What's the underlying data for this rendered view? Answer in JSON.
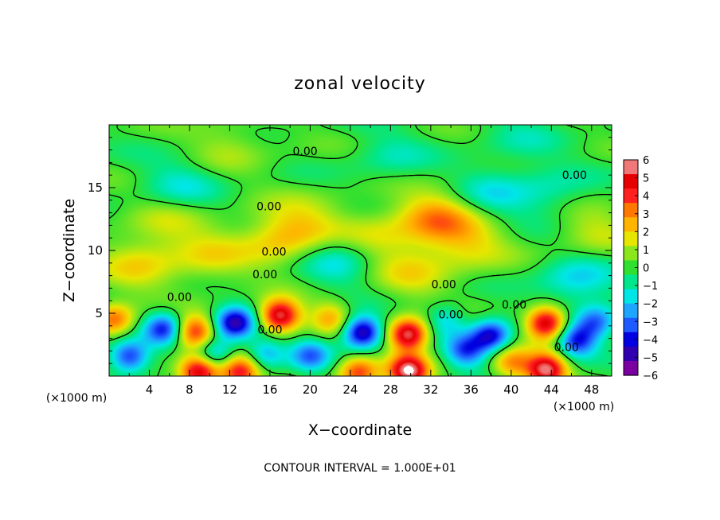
{
  "chart_data": {
    "type": "heatmap",
    "title": "zonal velocity",
    "xlabel": "X−coordinate",
    "ylabel": "Z−coordinate",
    "x_units": "(×1000 m)",
    "y_units": "(×1000 m)",
    "xlim": [
      0,
      50
    ],
    "ylim": [
      0,
      20
    ],
    "x_ticks": [
      4,
      8,
      12,
      16,
      20,
      24,
      28,
      32,
      36,
      40,
      44,
      48
    ],
    "y_ticks": [
      5,
      10,
      15
    ],
    "x_tick_labels": [
      "4",
      "8",
      "12",
      "16",
      "20",
      "24",
      "28",
      "32",
      "36",
      "40",
      "44",
      "48"
    ],
    "y_tick_labels": [
      "5",
      "10",
      "15"
    ],
    "footer": "CONTOUR INTERVAL = 1.000E+01",
    "colorbar": {
      "range": [
        -6,
        6
      ],
      "ticks": [
        6,
        5,
        4,
        3,
        2,
        1,
        0,
        -1,
        -2,
        -3,
        -4,
        -5,
        -6
      ],
      "tick_labels": [
        "6",
        "5",
        "4",
        "3",
        "2",
        "1",
        "0",
        "−1",
        "−2",
        "−3",
        "−4",
        "−5",
        "−6"
      ],
      "colors": [
        "#7a00a0",
        "#3000b0",
        "#0000e0",
        "#1e5aff",
        "#1ea6ff",
        "#00e6e6",
        "#00e68c",
        "#30e030",
        "#8ce61e",
        "#e6e600",
        "#ffb400",
        "#ff7800",
        "#ff2020",
        "#e60000",
        "#f07878"
      ]
    },
    "contour_labels": [
      {
        "text": "0.00",
        "x": 19.5,
        "z": 17.9
      },
      {
        "text": "0.00",
        "x": 46.3,
        "z": 16.0
      },
      {
        "text": "0.00",
        "x": 15.9,
        "z": 13.5
      },
      {
        "text": "0.00",
        "x": 16.4,
        "z": 9.9
      },
      {
        "text": "0.00",
        "x": 15.5,
        "z": 8.1
      },
      {
        "text": "0.00",
        "x": 7.0,
        "z": 6.3
      },
      {
        "text": "0.00",
        "x": 33.3,
        "z": 7.3
      },
      {
        "text": "0.00",
        "x": 40.3,
        "z": 5.7
      },
      {
        "text": "0.00",
        "x": 34.0,
        "z": 4.9
      },
      {
        "text": "0.00",
        "x": 16.0,
        "z": 3.7
      },
      {
        "text": "0.00",
        "x": 45.5,
        "z": 2.3
      }
    ],
    "features": [
      {
        "x": 8.5,
        "z": 3.5,
        "v": 4.5
      },
      {
        "x": 12.5,
        "z": 4.2,
        "v": -5.0
      },
      {
        "x": 5.5,
        "z": 3.8,
        "v": -4.0
      },
      {
        "x": 17.0,
        "z": 4.8,
        "v": 6.0
      },
      {
        "x": 29.8,
        "z": 3.3,
        "v": 6.0
      },
      {
        "x": 43.5,
        "z": 4.2,
        "v": 6.0
      },
      {
        "x": 25.2,
        "z": 3.5,
        "v": -5.5
      },
      {
        "x": 38.0,
        "z": 3.2,
        "v": -4.5
      },
      {
        "x": 35.5,
        "z": 2.0,
        "v": -3.5
      },
      {
        "x": 9.0,
        "z": 0.4,
        "v": 6.0
      },
      {
        "x": 13.0,
        "z": 0.4,
        "v": 5.0
      },
      {
        "x": 24.8,
        "z": 0.3,
        "v": 4.0
      },
      {
        "x": 29.8,
        "z": 0.4,
        "v": 6.0
      },
      {
        "x": 43.5,
        "z": 0.5,
        "v": 6.0
      },
      {
        "x": 2.0,
        "z": 1.5,
        "v": -4.0
      },
      {
        "x": 20.0,
        "z": 1.6,
        "v": -3.0
      },
      {
        "x": 10.5,
        "z": 1.8,
        "v": -3.0
      },
      {
        "x": 0.5,
        "z": 4.5,
        "v": 3.5
      },
      {
        "x": 46.5,
        "z": 2.8,
        "v": -4.0
      },
      {
        "x": 40.0,
        "z": 1.0,
        "v": 3.0
      },
      {
        "x": 22.0,
        "z": 4.6,
        "v": 2.5
      },
      {
        "x": 33.5,
        "z": 4.5,
        "v": -2.0
      },
      {
        "x": 48.5,
        "z": 4.3,
        "v": -3.0
      },
      {
        "x": 15.5,
        "z": 1.8,
        "v": -2.5
      },
      {
        "x": 32.5,
        "z": 12.5,
        "v": 3.0
      },
      {
        "x": 26.0,
        "z": 11.0,
        "v": 1.6
      },
      {
        "x": 20.0,
        "z": 12.0,
        "v": 1.4
      },
      {
        "x": 17.0,
        "z": 11.0,
        "v": 2.0
      },
      {
        "x": 23.0,
        "z": 9.5,
        "v": -2.0
      },
      {
        "x": 7.0,
        "z": 15.0,
        "v": -1.5
      },
      {
        "x": 38.0,
        "z": 14.5,
        "v": -1.4
      },
      {
        "x": 44.0,
        "z": 14.5,
        "v": -1.2
      },
      {
        "x": 46.5,
        "z": 7.5,
        "v": -2.0
      },
      {
        "x": 3.0,
        "z": 9.0,
        "v": 1.8
      },
      {
        "x": 10.0,
        "z": 9.5,
        "v": 1.5
      },
      {
        "x": 36.0,
        "z": 10.5,
        "v": 1.6
      },
      {
        "x": 28.0,
        "z": 17.5,
        "v": -1.0
      },
      {
        "x": 12.0,
        "z": 18.5,
        "v": 1.0
      },
      {
        "x": 41.0,
        "z": 19.0,
        "v": -0.8
      },
      {
        "x": 30.0,
        "z": 8.2,
        "v": 1.5
      },
      {
        "x": 6.0,
        "z": 12.5,
        "v": 1.2
      },
      {
        "x": 48.0,
        "z": 11.5,
        "v": 1.4
      }
    ]
  }
}
